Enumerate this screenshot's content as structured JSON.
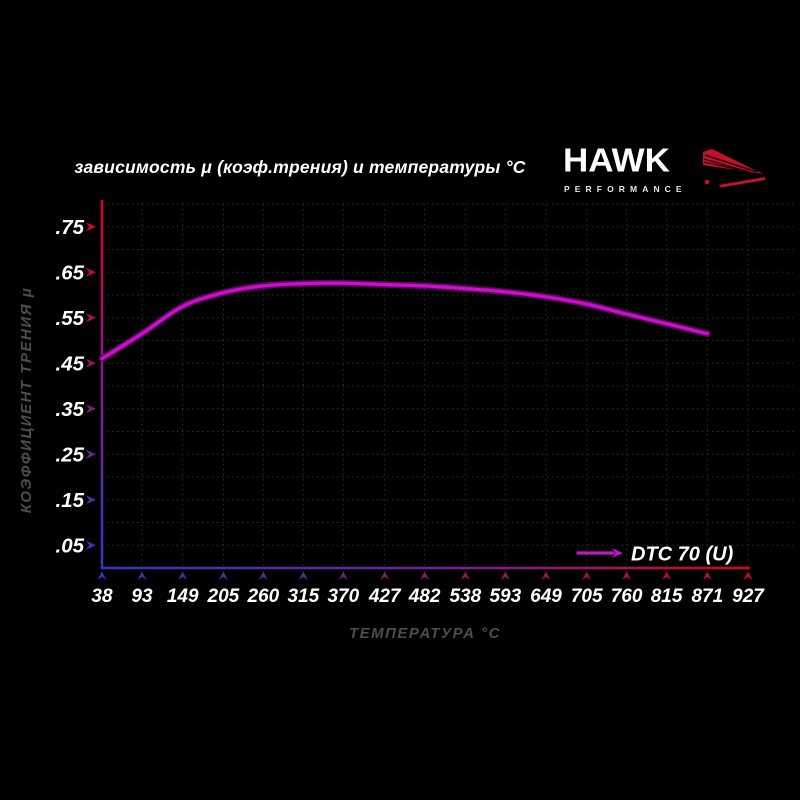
{
  "header": {
    "title": "зависимость μ (коэф.трения) и температуры °C",
    "logo": {
      "brand": "HAWK",
      "tagline": "PERFORMANCE",
      "wing_icon": "hawk-wing-icon"
    }
  },
  "chart_data": {
    "type": "line",
    "title": "зависимость μ (коэф.трения) и температуры °C",
    "xlabel": "ТЕМПЕРАТУРА °C",
    "ylabel": "КОЭФФИЦИЕНТ ТРЕНИЯ μ",
    "xlim": [
      38,
      927
    ],
    "ylim": [
      0,
      0.8
    ],
    "grid": true,
    "legend_position": "bottom-right",
    "x_ticks": [
      38,
      93,
      149,
      205,
      260,
      315,
      370,
      427,
      482,
      538,
      593,
      649,
      705,
      760,
      815,
      871,
      927
    ],
    "y_ticks": [
      0.05,
      0.15,
      0.25,
      0.35,
      0.45,
      0.55,
      0.65,
      0.75
    ],
    "y_tick_labels": [
      ".05",
      ".15",
      ".25",
      ".35",
      ".45",
      ".55",
      ".65",
      ".75"
    ],
    "series": [
      {
        "name": "DTC 70 (U)",
        "color": "#c713c7",
        "x": [
          38,
          93,
          149,
          205,
          260,
          315,
          370,
          427,
          482,
          538,
          593,
          649,
          705,
          760,
          815,
          871
        ],
        "y": [
          0.46,
          0.515,
          0.575,
          0.605,
          0.62,
          0.625,
          0.626,
          0.623,
          0.62,
          0.614,
          0.607,
          0.596,
          0.58,
          0.558,
          0.537,
          0.515
        ]
      }
    ]
  },
  "colors": {
    "background": "#000000",
    "text": "#ffffff",
    "axis_title": "#4d4d4d",
    "grid": "#2e2e2e",
    "axis_red": "#dd0020",
    "axis_blue": "#3038b8",
    "axis_mid": "#7a1f9a",
    "curve_core": "#c713c7",
    "curve_edge": "#6a026a",
    "logo_red": "#c8102e"
  }
}
